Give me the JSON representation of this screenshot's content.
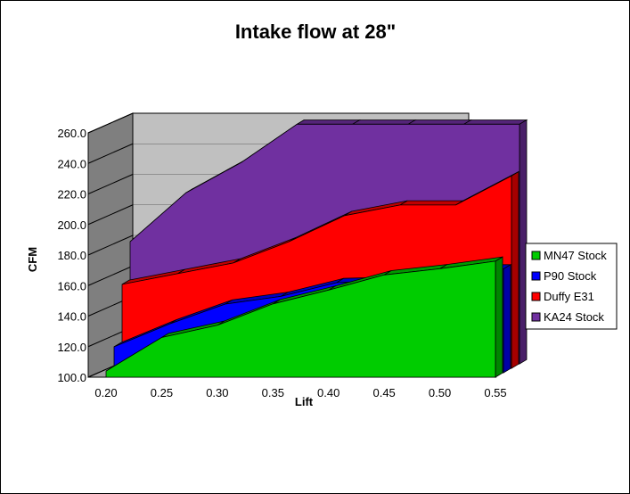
{
  "chart_data": {
    "type": "area",
    "title": "Intake flow at 28\"",
    "xlabel": "Lift",
    "ylabel": "CFM",
    "x": [
      0.2,
      0.25,
      0.3,
      0.35,
      0.4,
      0.45,
      0.5,
      0.55
    ],
    "x_tick_labels": [
      "0.20",
      "0.25",
      "0.30",
      "0.35",
      "0.40",
      "0.45",
      "0.50",
      "0.55"
    ],
    "y_tick_labels": [
      "100.0",
      "120.0",
      "140.0",
      "160.0",
      "180.0",
      "200.0",
      "220.0",
      "240.0",
      "260.0"
    ],
    "xlim": [
      0.2,
      0.55
    ],
    "ylim": [
      100,
      260
    ],
    "grid": true,
    "legend_position": "right",
    "series": [
      {
        "name": "MN47 Stock",
        "color": "#00cc00",
        "points": [
          [
            0.2,
            104
          ],
          [
            0.25,
            126
          ],
          [
            0.3,
            134
          ],
          [
            0.35,
            148
          ],
          [
            0.4,
            157
          ],
          [
            0.45,
            167
          ],
          [
            0.5,
            171
          ],
          [
            0.55,
            176
          ]
        ]
      },
      {
        "name": "P90 Stock",
        "color": "#0000ff",
        "points": [
          [
            0.2,
            117
          ],
          [
            0.25,
            132
          ],
          [
            0.3,
            145
          ],
          [
            0.35,
            150
          ],
          [
            0.4,
            159
          ],
          [
            0.45,
            160
          ],
          [
            0.5,
            168
          ],
          [
            0.55,
            168
          ]
        ]
      },
      {
        "name": "Duffy E31",
        "color": "#ff0000",
        "points": [
          [
            0.2,
            155
          ],
          [
            0.25,
            162
          ],
          [
            0.3,
            169
          ],
          [
            0.35,
            183
          ],
          [
            0.4,
            200
          ],
          [
            0.45,
            207
          ],
          [
            0.5,
            207
          ],
          [
            0.55,
            226
          ]
        ]
      },
      {
        "name": "KA24 Stock",
        "color": "#7030a0",
        "points": [
          [
            0.2,
            180
          ],
          [
            0.25,
            212
          ],
          [
            0.3,
            232
          ],
          [
            0.35,
            257
          ],
          [
            0.4,
            257
          ],
          [
            0.45,
            257
          ],
          [
            0.5,
            257
          ],
          [
            0.55,
            257
          ]
        ]
      }
    ]
  }
}
